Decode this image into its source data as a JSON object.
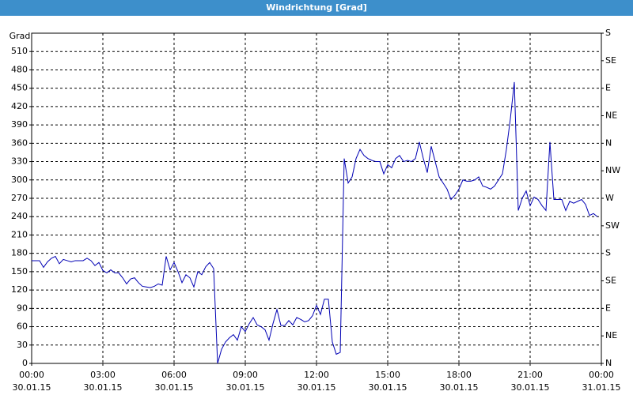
{
  "chart_data": {
    "type": "line",
    "title": "Windrichtung [Grad]",
    "ylabel": "Grad",
    "x": [
      "30.01.15 00:00",
      "30.01.15 00:10",
      "30.01.15 00:20",
      "30.01.15 00:30",
      "30.01.15 00:40",
      "30.01.15 00:50",
      "30.01.15 01:00",
      "30.01.15 01:10",
      "30.01.15 01:20",
      "30.01.15 01:30",
      "30.01.15 01:40",
      "30.01.15 01:50",
      "30.01.15 02:00",
      "30.01.15 02:10",
      "30.01.15 02:20",
      "30.01.15 02:30",
      "30.01.15 02:40",
      "30.01.15 02:50",
      "30.01.15 03:00",
      "30.01.15 03:10",
      "30.01.15 03:20",
      "30.01.15 03:30",
      "30.01.15 03:40",
      "30.01.15 03:50",
      "30.01.15 04:00",
      "30.01.15 04:10",
      "30.01.15 04:20",
      "30.01.15 04:30",
      "30.01.15 04:40",
      "30.01.15 04:50",
      "30.01.15 05:00",
      "30.01.15 05:10",
      "30.01.15 05:20",
      "30.01.15 05:30",
      "30.01.15 05:40",
      "30.01.15 05:50",
      "30.01.15 06:00",
      "30.01.15 06:10",
      "30.01.15 06:20",
      "30.01.15 06:30",
      "30.01.15 06:40",
      "30.01.15 06:50",
      "30.01.15 07:00",
      "30.01.15 07:10",
      "30.01.15 07:20",
      "30.01.15 07:30",
      "30.01.15 07:40",
      "30.01.15 07:50",
      "30.01.15 08:00",
      "30.01.15 08:10",
      "30.01.15 08:20",
      "30.01.15 08:30",
      "30.01.15 08:40",
      "30.01.15 08:50",
      "30.01.15 09:00",
      "30.01.15 09:10",
      "30.01.15 09:20",
      "30.01.15 09:30",
      "30.01.15 09:40",
      "30.01.15 09:50",
      "30.01.15 10:00",
      "30.01.15 10:10",
      "30.01.15 10:20",
      "30.01.15 10:30",
      "30.01.15 10:40",
      "30.01.15 10:50",
      "30.01.15 11:00",
      "30.01.15 11:10",
      "30.01.15 11:20",
      "30.01.15 11:30",
      "30.01.15 11:40",
      "30.01.15 11:50",
      "30.01.15 12:00",
      "30.01.15 12:10",
      "30.01.15 12:20",
      "30.01.15 12:30",
      "30.01.15 12:40",
      "30.01.15 12:50",
      "30.01.15 13:00",
      "30.01.15 13:10",
      "30.01.15 13:20",
      "30.01.15 13:30",
      "30.01.15 13:40",
      "30.01.15 13:50",
      "30.01.15 14:00",
      "30.01.15 14:10",
      "30.01.15 14:20",
      "30.01.15 14:30",
      "30.01.15 14:40",
      "30.01.15 14:50",
      "30.01.15 15:00",
      "30.01.15 15:10",
      "30.01.15 15:20",
      "30.01.15 15:30",
      "30.01.15 15:40",
      "30.01.15 15:50",
      "30.01.15 16:00",
      "30.01.15 16:10",
      "30.01.15 16:20",
      "30.01.15 16:30",
      "30.01.15 16:40",
      "30.01.15 16:50",
      "30.01.15 17:00",
      "30.01.15 17:10",
      "30.01.15 17:20",
      "30.01.15 17:30",
      "30.01.15 17:40",
      "30.01.15 17:50",
      "30.01.15 18:00",
      "30.01.15 18:10",
      "30.01.15 18:20",
      "30.01.15 18:30",
      "30.01.15 18:40",
      "30.01.15 18:50",
      "30.01.15 19:00",
      "30.01.15 19:10",
      "30.01.15 19:20",
      "30.01.15 19:30",
      "30.01.15 19:40",
      "30.01.15 19:50",
      "30.01.15 20:00",
      "30.01.15 20:10",
      "30.01.15 20:20",
      "30.01.15 20:30",
      "30.01.15 20:40",
      "30.01.15 20:50",
      "30.01.15 21:00",
      "30.01.15 21:10",
      "30.01.15 21:20",
      "30.01.15 21:30",
      "30.01.15 21:40",
      "30.01.15 21:50",
      "30.01.15 22:00",
      "30.01.15 22:10",
      "30.01.15 22:20",
      "30.01.15 22:30",
      "30.01.15 22:40",
      "30.01.15 22:50",
      "30.01.15 23:00",
      "30.01.15 23:10",
      "30.01.15 23:20",
      "30.01.15 23:30",
      "30.01.15 23:40",
      "30.01.15 23:50"
    ],
    "series": [
      {
        "color": "#0000b4",
        "values": [
          168,
          168,
          168,
          157,
          166,
          172,
          175,
          163,
          170,
          168,
          166,
          168,
          168,
          168,
          172,
          168,
          160,
          165,
          152,
          148,
          153,
          148,
          148,
          140,
          130,
          138,
          140,
          132,
          126,
          125,
          124,
          126,
          130,
          128,
          175,
          153,
          165,
          150,
          132,
          145,
          140,
          125,
          150,
          145,
          158,
          165,
          155,
          0,
          23,
          35,
          42,
          47,
          38,
          60,
          52,
          65,
          75,
          63,
          60,
          55,
          38,
          65,
          88,
          62,
          62,
          70,
          63,
          75,
          72,
          68,
          70,
          78,
          95,
          80,
          105,
          105,
          35,
          15,
          18,
          335,
          295,
          305,
          335,
          350,
          340,
          335,
          332,
          330,
          330,
          310,
          325,
          320,
          335,
          340,
          330,
          332,
          330,
          335,
          362,
          335,
          312,
          355,
          330,
          305,
          295,
          285,
          268,
          275,
          285,
          300,
          298,
          298,
          300,
          305,
          290,
          288,
          285,
          290,
          300,
          310,
          350,
          400,
          460,
          250,
          270,
          282,
          258,
          272,
          268,
          258,
          250,
          362,
          268,
          268,
          268,
          250,
          265,
          262,
          265,
          268,
          260,
          242,
          245,
          240
        ]
      }
    ],
    "xlim": [
      "30.01.15 00:00",
      "31.01.15 00:00"
    ],
    "xticks": [
      {
        "value": "30.01.15 00:00",
        "label": [
          "00:00",
          "30.01.15"
        ]
      },
      {
        "value": "30.01.15 03:00",
        "label": [
          "03:00",
          "30.01.15"
        ]
      },
      {
        "value": "30.01.15 06:00",
        "label": [
          "06:00",
          "30.01.15"
        ]
      },
      {
        "value": "30.01.15 09:00",
        "label": [
          "09:00",
          "30.01.15"
        ]
      },
      {
        "value": "30.01.15 12:00",
        "label": [
          "12:00",
          "30.01.15"
        ]
      },
      {
        "value": "30.01.15 15:00",
        "label": [
          "15:00",
          "30.01.15"
        ]
      },
      {
        "value": "30.01.15 18:00",
        "label": [
          "18:00",
          "30.01.15"
        ]
      },
      {
        "value": "30.01.15 21:00",
        "label": [
          "21:00",
          "30.01.15"
        ]
      },
      {
        "value": "31.01.15 00:00",
        "label": [
          "00:00",
          "31.01.15"
        ]
      }
    ],
    "ylim": [
      0,
      540
    ],
    "yticks": [
      0,
      30,
      60,
      90,
      120,
      150,
      180,
      210,
      240,
      270,
      300,
      330,
      360,
      390,
      420,
      450,
      480,
      510
    ],
    "y2lim": [
      0,
      540
    ],
    "y2ticks": [
      {
        "value": 0,
        "label": "N"
      },
      {
        "value": 45,
        "label": "NE"
      },
      {
        "value": 90,
        "label": "E"
      },
      {
        "value": 135,
        "label": "SE"
      },
      {
        "value": 180,
        "label": "S"
      },
      {
        "value": 225,
        "label": "SW"
      },
      {
        "value": 270,
        "label": "W"
      },
      {
        "value": 315,
        "label": "NW"
      },
      {
        "value": 360,
        "label": "N"
      },
      {
        "value": 405,
        "label": "NE"
      },
      {
        "value": 450,
        "label": "E"
      },
      {
        "value": 495,
        "label": "SE"
      },
      {
        "value": 540,
        "label": "S"
      }
    ],
    "grid": true
  }
}
